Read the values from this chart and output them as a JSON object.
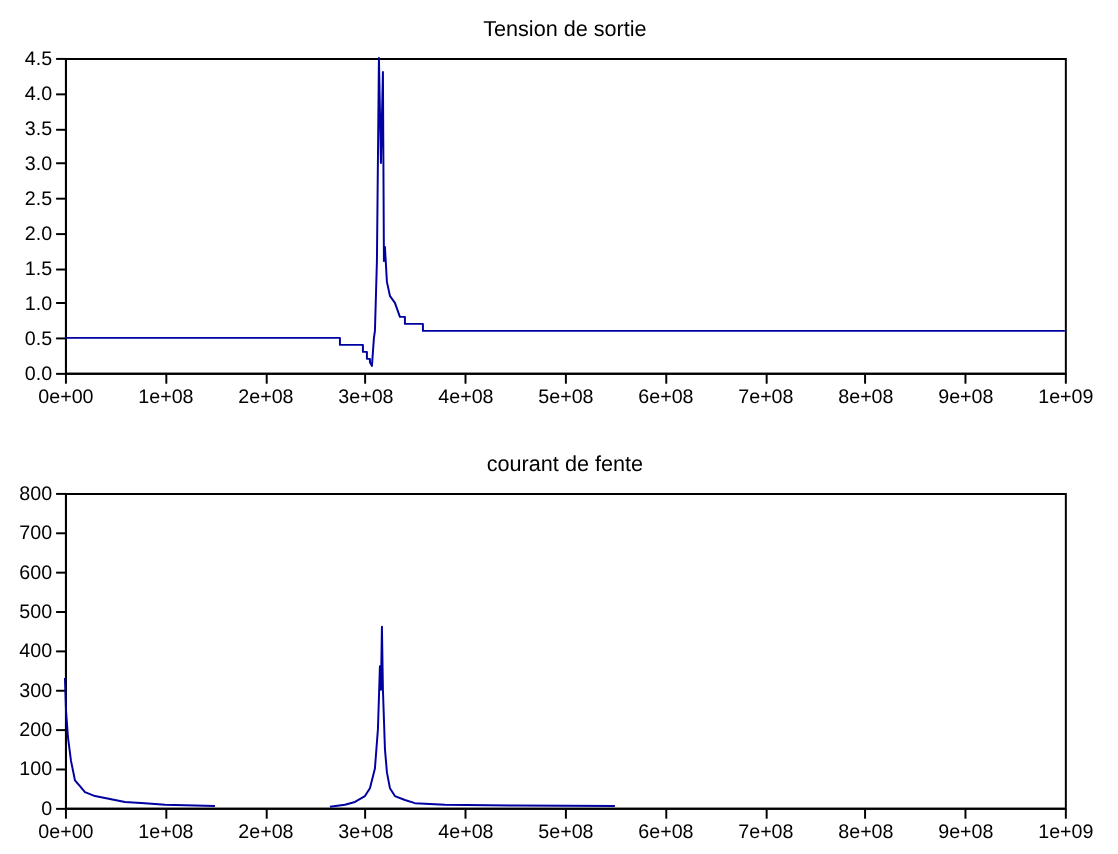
{
  "chart_data": [
    {
      "type": "line",
      "title": "Tension de sortie",
      "x": [
        0,
        275000000,
        275000000,
        298000000,
        298000000,
        302000000,
        302000000,
        305000000,
        305000000,
        307000000,
        309000000,
        310000000,
        312000000,
        314000000,
        316000000,
        318000000,
        319000000,
        320000000,
        322000000,
        325000000,
        330000000,
        335000000,
        340000000,
        340000000,
        358000000,
        358000000,
        1000000000
      ],
      "series": [
        {
          "color": "#0000a0",
          "values": [
            0.5,
            0.5,
            0.4,
            0.4,
            0.3,
            0.3,
            0.2,
            0.2,
            0.15,
            0.1,
            0.5,
            0.6,
            1.6,
            4.5,
            3.0,
            4.3,
            1.6,
            1.8,
            1.3,
            1.1,
            1.0,
            0.8,
            0.8,
            0.7,
            0.7,
            0.6,
            0.6
          ]
        }
      ],
      "xlim": [
        0,
        1000000000
      ],
      "ylim": [
        0,
        4.5
      ],
      "xticks": [
        {
          "value": 0,
          "label": "0e+00"
        },
        {
          "value": 100000000,
          "label": "1e+08"
        },
        {
          "value": 200000000,
          "label": "2e+08"
        },
        {
          "value": 300000000,
          "label": "3e+08"
        },
        {
          "value": 400000000,
          "label": "4e+08"
        },
        {
          "value": 500000000,
          "label": "5e+08"
        },
        {
          "value": 600000000,
          "label": "6e+08"
        },
        {
          "value": 700000000,
          "label": "7e+08"
        },
        {
          "value": 800000000,
          "label": "8e+08"
        },
        {
          "value": 900000000,
          "label": "9e+08"
        },
        {
          "value": 1000000000,
          "label": "1e+09"
        }
      ],
      "yticks": [
        {
          "value": 0,
          "label": "0.0"
        },
        {
          "value": 0.5,
          "label": "0.5"
        },
        {
          "value": 1,
          "label": "1.0"
        },
        {
          "value": 1.5,
          "label": "1.5"
        },
        {
          "value": 2,
          "label": "2.0"
        },
        {
          "value": 2.5,
          "label": "2.5"
        },
        {
          "value": 3,
          "label": "3.0"
        },
        {
          "value": 3.5,
          "label": "3.5"
        },
        {
          "value": 4,
          "label": "4.0"
        },
        {
          "value": 4.5,
          "label": "4.5"
        }
      ],
      "grid": false
    },
    {
      "type": "line",
      "title": "courant de fente",
      "x": [
        0,
        1000000,
        3000000,
        6000000,
        10000000,
        15000000,
        20000000,
        30000000,
        40000000,
        50000000,
        60000000,
        80000000,
        100000000,
        150000000,
        200000000,
        265000000,
        280000000,
        290000000,
        300000000,
        305000000,
        310000000,
        313000000,
        315000000,
        316000000,
        317000000,
        318000000,
        320000000,
        322000000,
        325000000,
        330000000,
        340000000,
        350000000,
        380000000,
        450000000,
        550000000
      ],
      "series": [
        {
          "color": "#0000a0",
          "values": [
            330,
            250,
            180,
            120,
            70,
            55,
            40,
            30,
            25,
            20,
            15,
            12,
            8,
            5,
            null,
            3,
            8,
            15,
            30,
            50,
            100,
            200,
            360,
            300,
            460,
            300,
            150,
            90,
            50,
            30,
            20,
            12,
            8,
            6,
            5
          ]
        }
      ],
      "xlim": [
        0,
        1000000000
      ],
      "ylim": [
        0,
        800
      ],
      "xticks": [
        {
          "value": 0,
          "label": "0e+00"
        },
        {
          "value": 100000000,
          "label": "1e+08"
        },
        {
          "value": 200000000,
          "label": "2e+08"
        },
        {
          "value": 300000000,
          "label": "3e+08"
        },
        {
          "value": 400000000,
          "label": "4e+08"
        },
        {
          "value": 500000000,
          "label": "5e+08"
        },
        {
          "value": 600000000,
          "label": "6e+08"
        },
        {
          "value": 700000000,
          "label": "7e+08"
        },
        {
          "value": 800000000,
          "label": "8e+08"
        },
        {
          "value": 900000000,
          "label": "9e+08"
        },
        {
          "value": 1000000000,
          "label": "1e+09"
        }
      ],
      "yticks": [
        0,
        100,
        200,
        300,
        400,
        500,
        600,
        700,
        800
      ],
      "grid": false
    }
  ]
}
